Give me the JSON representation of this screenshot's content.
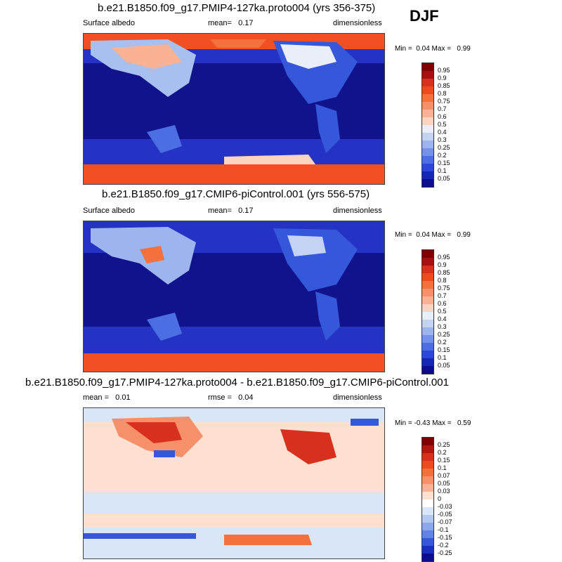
{
  "season": "DJF",
  "colors": {
    "ocean_deep": "#10138c",
    "ice_high": "#f25022",
    "land_mid": "#e8e8f8"
  },
  "panels": [
    {
      "title": "b.e21.B1850.f09_g17.PMIP4-127ka.proto004 (yrs 356-375)",
      "left": "Surface albedo",
      "center_label": "mean=",
      "center_value": "0.17",
      "right": "dimensionless",
      "min_label": "Min =",
      "min": "0.04",
      "max_label": "Max =",
      "max": "0.99",
      "colorbar": {
        "labels": [
          "0.95",
          "0.9",
          "0.85",
          "0.8",
          "0.75",
          "0.7",
          "0.6",
          "0.5",
          "0.4",
          "0.3",
          "0.25",
          "0.2",
          "0.15",
          "0.1",
          "0.05"
        ],
        "colors": [
          "#7f0000",
          "#a50f0f",
          "#d7301f",
          "#ef4a1f",
          "#f4703c",
          "#f6906a",
          "#f9b294",
          "#fbd4bf",
          "#e9eef8",
          "#c4d2f3",
          "#9cb5ee",
          "#7393e8",
          "#4b6fe3",
          "#2a47d9",
          "#1228b5",
          "#0b0d8c"
        ]
      }
    },
    {
      "title": "b.e21.B1850.f09_g17.CMIP6-piControl.001 (yrs 556-575)",
      "left": "Surface albedo",
      "center_label": "mean=",
      "center_value": "0.17",
      "right": "dimensionless",
      "min_label": "Min =",
      "min": "0.04",
      "max_label": "Max =",
      "max": "0.99",
      "colorbar": {
        "labels": [
          "0.95",
          "0.9",
          "0.85",
          "0.8",
          "0.75",
          "0.7",
          "0.6",
          "0.5",
          "0.4",
          "0.3",
          "0.25",
          "0.2",
          "0.15",
          "0.1",
          "0.05"
        ],
        "colors": [
          "#7f0000",
          "#a50f0f",
          "#d7301f",
          "#ef4a1f",
          "#f4703c",
          "#f6906a",
          "#f9b294",
          "#fbd4bf",
          "#e9eef8",
          "#c4d2f3",
          "#9cb5ee",
          "#7393e8",
          "#4b6fe3",
          "#2a47d9",
          "#1228b5",
          "#0b0d8c"
        ]
      }
    },
    {
      "title": "b.e21.B1850.f09_g17.PMIP4-127ka.proto004 - b.e21.B1850.f09_g17.CMIP6-piControl.001",
      "left_label": "mean =",
      "left_value": "0.01",
      "center_label": "rmse =",
      "center_value": "0.04",
      "right": "dimensionless",
      "min_label": "Min =",
      "min": "-0.43",
      "max_label": "Max =",
      "max": "0.59",
      "colorbar": {
        "labels": [
          "0.25",
          "0.2",
          "0.15",
          "0.1",
          "0.07",
          "0.05",
          "0.03",
          "0",
          "-0.03",
          "-0.05",
          "-0.07",
          "-0.1",
          "-0.15",
          "-0.2",
          "-0.25"
        ],
        "colors": [
          "#7f0000",
          "#b2170f",
          "#d7301f",
          "#ef4a1f",
          "#f4703c",
          "#f6906a",
          "#f9b294",
          "#fde0d0",
          "#ffffff",
          "#d9e6f8",
          "#b2c8f0",
          "#8aa8ea",
          "#5f84e4",
          "#3557da",
          "#1a2fc0",
          "#0b0d8c"
        ]
      }
    }
  ]
}
